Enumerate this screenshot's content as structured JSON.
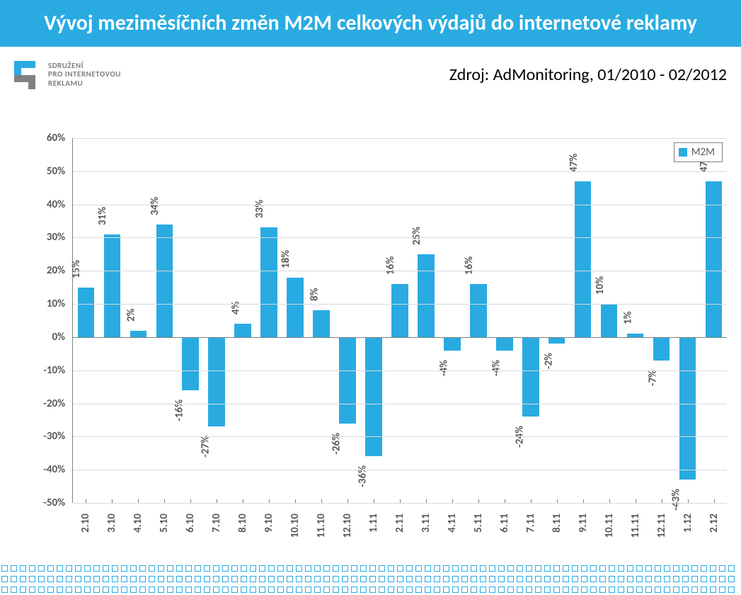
{
  "title": "Vývoj meziměsíčních změn M2M celkových výdajů do internetové reklamy",
  "logo": {
    "line1": "SDRUŽENÍ",
    "line2": "PRO INTERNETOVOU",
    "line3": "REKLAMU",
    "color": "#29abe2"
  },
  "source": "Zdroj: AdMonitoring, 01/2010 - 02/2012",
  "chart": {
    "type": "bar",
    "legend_label": "M2M",
    "bar_color": "#29abe2",
    "background_color": "#ffffff",
    "grid_color": "#d9d9d9",
    "axis_color": "#808080",
    "text_color": "#595959",
    "ylim": [
      -50,
      60
    ],
    "ytick_step": 10,
    "ytick_format": "percent",
    "label_fontsize": 15,
    "label_fontweight": "bold",
    "categories": [
      "2.10",
      "3.10",
      "4.10",
      "5.10",
      "6.10",
      "7.10",
      "8.10",
      "9.10",
      "10.10",
      "11.10",
      "12.10",
      "1.11",
      "2.11",
      "3.11",
      "4.11",
      "5.11",
      "6.11",
      "7.11",
      "8.11",
      "9.11",
      "10.11",
      "11.11",
      "12.11",
      "1.12",
      "2.12"
    ],
    "values": [
      15,
      31,
      2,
      34,
      -16,
      -27,
      4,
      33,
      18,
      8,
      -26,
      -36,
      16,
      25,
      -4,
      16,
      -4,
      -24,
      -2,
      47,
      10,
      1,
      -7,
      -43,
      47
    ]
  }
}
